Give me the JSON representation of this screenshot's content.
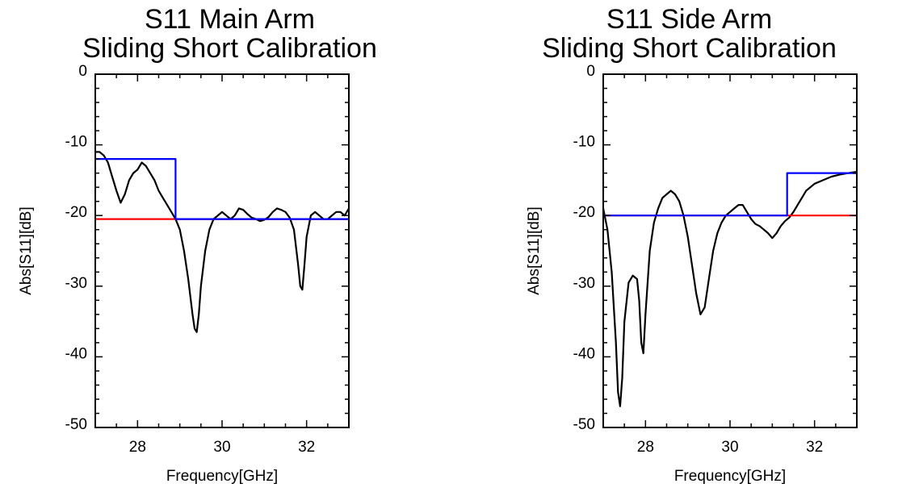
{
  "chart_data": [
    {
      "type": "line",
      "title": [
        "S11 Main Arm",
        "Sliding Short Calibration"
      ],
      "xlabel": "Frequency[GHz]",
      "ylabel": "Abs[S11][dB]",
      "xlim": [
        27,
        33
      ],
      "ylim": [
        -50,
        0
      ],
      "xticks": [
        28,
        30,
        32
      ],
      "yticks": [
        0,
        -10,
        -20,
        -30,
        -40,
        -50
      ],
      "grid": false,
      "series": [
        {
          "color": "#000000",
          "x": [
            27.0,
            27.1,
            27.2,
            27.3,
            27.4,
            27.5,
            27.6,
            27.7,
            27.8,
            27.9,
            28.0,
            28.1,
            28.2,
            28.3,
            28.4,
            28.5,
            28.6,
            28.7,
            28.8,
            28.9,
            29.0,
            29.1,
            29.2,
            29.3,
            29.35,
            29.4,
            29.45,
            29.5,
            29.6,
            29.7,
            29.8,
            29.9,
            30.0,
            30.1,
            30.2,
            30.3,
            30.4,
            30.5,
            30.6,
            30.7,
            30.8,
            30.9,
            31.0,
            31.1,
            31.2,
            31.3,
            31.4,
            31.5,
            31.6,
            31.7,
            31.8,
            31.85,
            31.9,
            31.95,
            32.0,
            32.1,
            32.2,
            32.3,
            32.4,
            32.5,
            32.6,
            32.7,
            32.8,
            32.9,
            33.0
          ],
          "values": [
            -11,
            -11,
            -11.5,
            -12.5,
            -14.5,
            -16.5,
            -18.2,
            -17,
            -15,
            -14,
            -13.5,
            -12.5,
            -13,
            -14,
            -15,
            -16.5,
            -17.5,
            -18.5,
            -19.5,
            -20.5,
            -22,
            -25,
            -29,
            -34,
            -36,
            -36.5,
            -34,
            -30,
            -25,
            -22,
            -20.5,
            -20,
            -19.5,
            -20,
            -20.5,
            -20,
            -19,
            -19.2,
            -19.8,
            -20.3,
            -20.5,
            -20.8,
            -20.6,
            -20.2,
            -19.5,
            -19,
            -19.2,
            -19.5,
            -20.3,
            -22,
            -27,
            -30,
            -30.5,
            -27,
            -23,
            -20,
            -19.5,
            -20,
            -20.5,
            -20.5,
            -20,
            -19.5,
            -19.5,
            -20,
            -19
          ]
        },
        {
          "color": "#ff0000",
          "x": [
            27,
            33
          ],
          "values": [
            -20.5,
            -20.5
          ]
        },
        {
          "color": "#0000ff",
          "x": [
            27,
            28.9,
            28.9,
            33
          ],
          "values": [
            -12,
            -12,
            -20.5,
            -20.5
          ]
        }
      ]
    },
    {
      "type": "line",
      "title": [
        "S11 Side Arm",
        "Sliding Short Calibration"
      ],
      "xlabel": "Frequency[GHz]",
      "ylabel": "Abs[S11][dB]",
      "xlim": [
        27,
        33
      ],
      "ylim": [
        -50,
        0
      ],
      "xticks": [
        28,
        30,
        32
      ],
      "yticks": [
        0,
        -10,
        -20,
        -30,
        -40,
        -50
      ],
      "grid": false,
      "series": [
        {
          "color": "#000000",
          "x": [
            27.0,
            27.1,
            27.2,
            27.3,
            27.35,
            27.4,
            27.45,
            27.5,
            27.6,
            27.7,
            27.8,
            27.85,
            27.9,
            27.95,
            28.0,
            28.1,
            28.2,
            28.3,
            28.4,
            28.5,
            28.6,
            28.7,
            28.8,
            28.9,
            29.0,
            29.1,
            29.2,
            29.3,
            29.4,
            29.5,
            29.6,
            29.7,
            29.8,
            29.9,
            30.0,
            30.1,
            30.2,
            30.3,
            30.4,
            30.5,
            30.6,
            30.7,
            30.8,
            30.9,
            31.0,
            31.1,
            31.2,
            31.3,
            31.4,
            31.5,
            31.6,
            31.7,
            31.8,
            32.0,
            32.2,
            32.4,
            32.6,
            32.8,
            33.0
          ],
          "values": [
            -19,
            -22,
            -28,
            -38,
            -45,
            -47,
            -43,
            -35,
            -29.5,
            -28.5,
            -29,
            -32,
            -38,
            -39.5,
            -34,
            -25,
            -21,
            -19,
            -17.5,
            -17,
            -16.5,
            -17,
            -18,
            -20,
            -23,
            -27,
            -31,
            -34,
            -33,
            -29,
            -25,
            -22.5,
            -21,
            -20,
            -19.5,
            -19,
            -18.5,
            -18.5,
            -19.5,
            -20.5,
            -21.2,
            -21.5,
            -22,
            -22.5,
            -23.2,
            -22.5,
            -21.5,
            -20.8,
            -20.3,
            -19.5,
            -18.5,
            -17.5,
            -16.5,
            -15.5,
            -15,
            -14.5,
            -14.2,
            -14,
            -13.8
          ]
        },
        {
          "color": "#ff0000",
          "x": [
            27,
            33
          ],
          "values": [
            -20,
            -20
          ]
        },
        {
          "color": "#0000ff",
          "x": [
            27,
            31.35,
            31.35,
            33
          ],
          "values": [
            -20,
            -20,
            -14,
            -14
          ]
        }
      ]
    }
  ]
}
